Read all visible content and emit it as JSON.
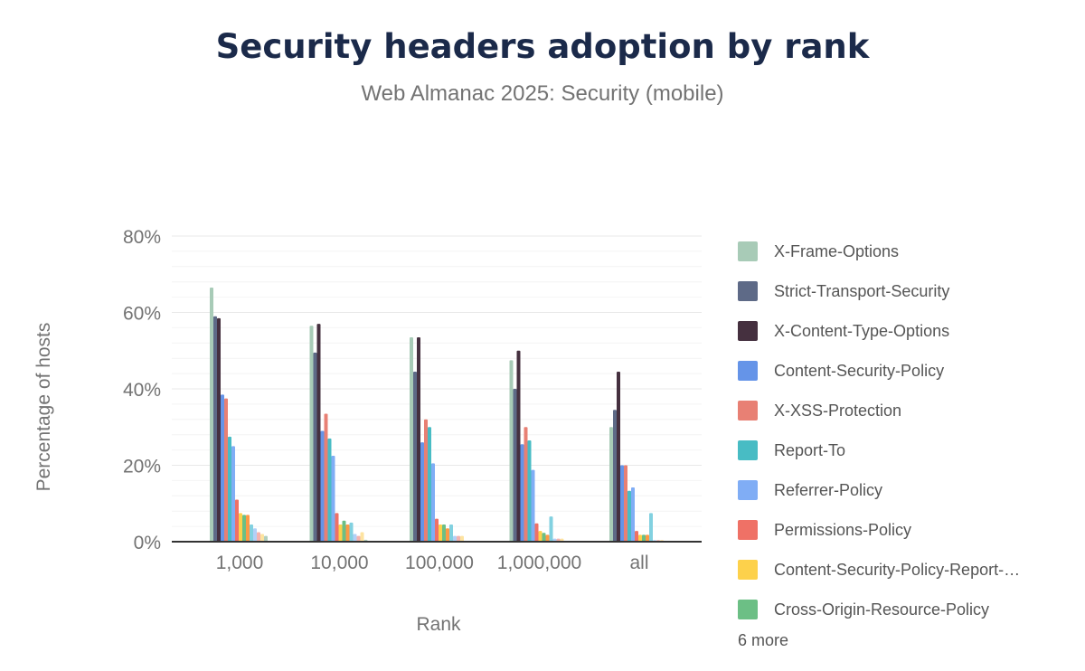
{
  "chart_data": {
    "type": "bar",
    "title": "Security headers adoption by rank",
    "subtitle": "Web Almanac 2025: Security (mobile)",
    "xlabel": "Rank",
    "ylabel": "Percentage of hosts",
    "ylim": [
      0,
      80
    ],
    "yticks": [
      "0%",
      "20%",
      "40%",
      "60%",
      "80%"
    ],
    "grid": true,
    "legend_position": "right",
    "legend_more": "6 more",
    "categories": [
      "1,000",
      "10,000",
      "100,000",
      "1,000,000",
      "all"
    ],
    "series": [
      {
        "name": "X-Frame-Options",
        "color": "#a8cbb7",
        "values": [
          66.5,
          56.5,
          53.5,
          47.5,
          30
        ]
      },
      {
        "name": "Strict-Transport-Security",
        "color": "#5e6a87",
        "values": [
          59,
          49.5,
          44.5,
          40,
          34.5
        ]
      },
      {
        "name": "X-Content-Type-Options",
        "color": "#45303f",
        "values": [
          58.5,
          57,
          53.5,
          50,
          44.5
        ]
      },
      {
        "name": "Content-Security-Policy",
        "color": "#6594e8",
        "values": [
          38.5,
          29,
          26,
          25.5,
          20
        ]
      },
      {
        "name": "X-XSS-Protection",
        "color": "#e88074",
        "values": [
          37.5,
          33.5,
          32,
          30,
          20
        ]
      },
      {
        "name": "Report-To",
        "color": "#48bcc4",
        "values": [
          27.5,
          27,
          30,
          26.5,
          13.3
        ]
      },
      {
        "name": "Referrer-Policy",
        "color": "#80adf5",
        "values": [
          25,
          22.5,
          20.5,
          18.8,
          14.2
        ]
      },
      {
        "name": "Permissions-Policy",
        "color": "#ef7166",
        "values": [
          11,
          7.5,
          6,
          4.8,
          2.8
        ]
      },
      {
        "name": "Content-Security-Policy-Report-…",
        "color": "#fdd14b",
        "values": [
          7.5,
          4.5,
          4.5,
          2.8,
          1.8
        ]
      },
      {
        "name": "Cross-Origin-Resource-Policy",
        "color": "#6cbf85",
        "values": [
          7,
          5.5,
          4.5,
          2.3,
          1.8
        ]
      },
      {
        "color": "#fc9a45",
        "values": [
          7,
          4.5,
          3.5,
          1.8,
          1.8
        ]
      },
      {
        "color": "#82d1e0",
        "values": [
          4.5,
          5,
          4.5,
          6.6,
          7.5
        ]
      },
      {
        "color": "#b3d0f7",
        "values": [
          3.5,
          2,
          1.5,
          0.8,
          0.4
        ]
      },
      {
        "color": "#f4b3ae",
        "values": [
          2.5,
          1.5,
          1.5,
          0.8,
          0.4
        ]
      },
      {
        "color": "#fde3a0",
        "values": [
          2,
          2.5,
          1.5,
          0.8,
          0.4
        ]
      },
      {
        "color": "#b2cfbd",
        "values": [
          1.5,
          0.5,
          0,
          0,
          0
        ]
      }
    ]
  }
}
